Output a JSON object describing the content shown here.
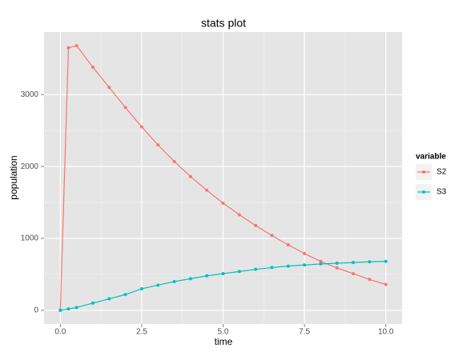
{
  "chart_data": {
    "type": "line",
    "title": "stats plot",
    "x_label": "time",
    "y_label": "population",
    "x": [
      0,
      0.25,
      0.5,
      1,
      1.5,
      2,
      2.5,
      3,
      3.5,
      4,
      4.5,
      5,
      5.5,
      6,
      6.5,
      7,
      7.5,
      8,
      8.5,
      9,
      9.5,
      10
    ],
    "series": [
      {
        "name": "S2",
        "color": "#F8766D",
        "values": [
          0,
          3650,
          3680,
          3380,
          3100,
          2820,
          2550,
          2300,
          2070,
          1860,
          1670,
          1490,
          1330,
          1180,
          1040,
          910,
          790,
          680,
          590,
          510,
          430,
          360
        ]
      },
      {
        "name": "S3",
        "color": "#00BFC4",
        "values": [
          0,
          20,
          40,
          100,
          160,
          220,
          300,
          350,
          400,
          440,
          480,
          510,
          540,
          570,
          595,
          615,
          630,
          645,
          655,
          665,
          675,
          680
        ]
      }
    ],
    "legend_title": "variable",
    "xlim": [
      -0.5,
      10.5
    ],
    "ylim": [
      -190,
      3870
    ],
    "xticks": [
      {
        "value": 0,
        "label": "0.0"
      },
      2.5,
      {
        "value": 5,
        "label": "5.0"
      },
      7.5,
      {
        "value": 10,
        "label": "10.0"
      }
    ],
    "yticks": [
      0,
      1000,
      2000,
      3000
    ],
    "grid": true
  }
}
